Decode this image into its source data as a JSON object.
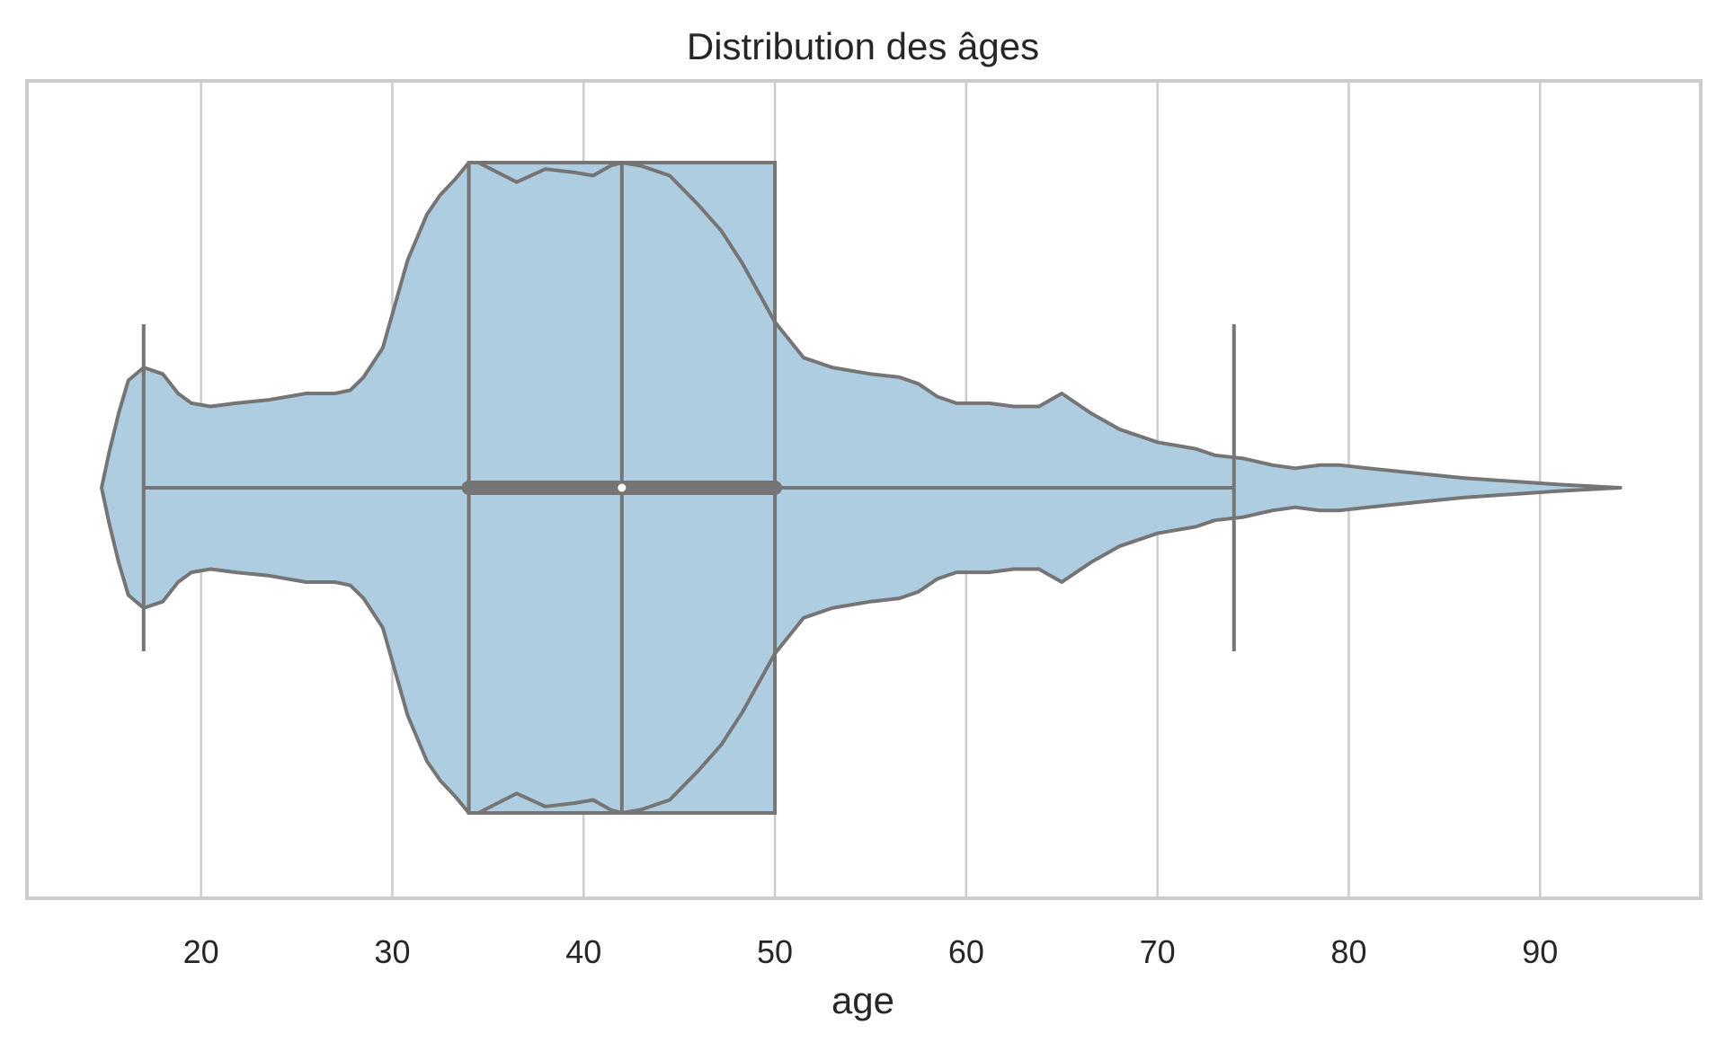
{
  "chart_data": {
    "type": "violin",
    "title": "Distribution des âges",
    "xlabel": "age",
    "ylabel": "",
    "xlim": [
      10.9,
      98.4
    ],
    "xticks": [
      20,
      30,
      40,
      50,
      60,
      70,
      80,
      90
    ],
    "xtick_labels": [
      "20",
      "30",
      "40",
      "50",
      "60",
      "70",
      "80",
      "90"
    ],
    "grid": "vertical",
    "orientation": "horizontal",
    "fill_color": "#aecde0",
    "line_color": "#757575",
    "box": {
      "q1": 34,
      "median": 42,
      "q3": 50,
      "whisker_low": 17,
      "whisker_high": 74
    },
    "inner_box": {
      "q1": 34,
      "median": 42,
      "q3": 50
    },
    "density": {
      "x": [
        14.8,
        15.2,
        15.7,
        16.2,
        17.0,
        18.0,
        18.8,
        19.5,
        20.5,
        21.8,
        23.5,
        25.5,
        27.0,
        27.8,
        28.5,
        29.5,
        30.8,
        31.8,
        32.5,
        33.3,
        34.0,
        34.5,
        35.5,
        36.5,
        38.0,
        39.5,
        40.5,
        41.4,
        42.0,
        43.0,
        44.5,
        46.0,
        47.2,
        48.3,
        50.0,
        51.5,
        53.0,
        55.0,
        56.5,
        57.5,
        58.5,
        59.5,
        61.2,
        62.5,
        63.8,
        65.0,
        66.5,
        68.0,
        70.0,
        72.0,
        73.0,
        74.5,
        76.0,
        77.2,
        78.5,
        79.5,
        81.0,
        83.5,
        86.0,
        88.5,
        91.0,
        94.2
      ],
      "half_width": [
        0.0,
        0.11,
        0.23,
        0.33,
        0.37,
        0.35,
        0.29,
        0.26,
        0.25,
        0.26,
        0.27,
        0.29,
        0.29,
        0.3,
        0.34,
        0.43,
        0.7,
        0.84,
        0.9,
        0.95,
        1.0,
        1.0,
        0.97,
        0.94,
        0.98,
        0.97,
        0.96,
        0.99,
        1.0,
        0.99,
        0.96,
        0.87,
        0.79,
        0.69,
        0.51,
        0.4,
        0.37,
        0.35,
        0.34,
        0.32,
        0.28,
        0.26,
        0.26,
        0.25,
        0.25,
        0.29,
        0.23,
        0.18,
        0.14,
        0.12,
        0.1,
        0.09,
        0.07,
        0.06,
        0.07,
        0.07,
        0.06,
        0.045,
        0.03,
        0.02,
        0.01,
        0.0
      ]
    }
  }
}
